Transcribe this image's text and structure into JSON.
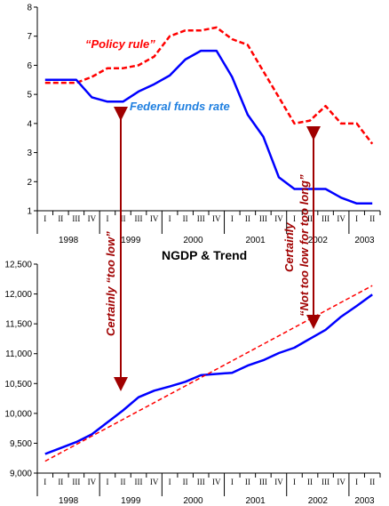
{
  "colors": {
    "policy": "#ff0000",
    "fedfunds": "#0000ff",
    "annotation": "#a00000",
    "series_label_blue": "#2080e0",
    "axis": "#000000"
  },
  "chart_data": [
    {
      "type": "line",
      "title": "",
      "ylim": [
        1,
        8
      ],
      "yticks": [
        "1",
        "2",
        "3",
        "4",
        "5",
        "6",
        "7",
        "8"
      ],
      "quarter_labels": [
        "I",
        "II",
        "III",
        "IV",
        "I",
        "II",
        "III",
        "IV",
        "I",
        "II",
        "III",
        "IV",
        "I",
        "II",
        "III",
        "IV",
        "I",
        "II",
        "III",
        "IV",
        "I",
        "II"
      ],
      "years": [
        "1998",
        "1999",
        "2000",
        "2001",
        "2002",
        "2003"
      ],
      "series": [
        {
          "name": "“Policy rule”",
          "style": "dashed",
          "values": [
            5.4,
            5.4,
            5.4,
            5.6,
            5.9,
            5.9,
            6.0,
            6.3,
            7.0,
            7.2,
            7.2,
            7.3,
            6.9,
            6.7,
            5.8,
            4.9,
            4.0,
            4.1,
            4.6,
            4.0,
            4.0,
            3.3
          ]
        },
        {
          "name": "Federal funds rate",
          "style": "solid",
          "values": [
            5.5,
            5.5,
            5.5,
            4.9,
            4.75,
            4.75,
            5.1,
            5.35,
            5.65,
            6.2,
            6.5,
            6.5,
            5.6,
            4.3,
            3.55,
            2.15,
            1.75,
            1.75,
            1.75,
            1.45,
            1.25,
            1.25
          ]
        }
      ],
      "annotations": {
        "left_arrow_text": "Certainly “too low”",
        "right_arrow_text_line1": "Certainly",
        "right_arrow_text_line2": "“Not too low for too long”"
      }
    },
    {
      "type": "line",
      "title": "NGDP & Trend",
      "ylim": [
        9000,
        12500
      ],
      "yticks": [
        "9,000",
        "9,500",
        "10,000",
        "10,500",
        "11,000",
        "11,500",
        "12,000",
        "12,500"
      ],
      "quarter_labels": [
        "I",
        "II",
        "III",
        "IV",
        "I",
        "II",
        "III",
        "IV",
        "I",
        "II",
        "III",
        "IV",
        "I",
        "II",
        "III",
        "IV",
        "I",
        "II",
        "III",
        "IV",
        "I",
        "II"
      ],
      "years": [
        "1998",
        "1999",
        "2000",
        "2001",
        "2002",
        "2003"
      ],
      "series": [
        {
          "style": "solid",
          "values": [
            9320,
            9420,
            9520,
            9650,
            9850,
            10050,
            10270,
            10380,
            10450,
            10530,
            10640,
            10660,
            10680,
            10800,
            10890,
            11010,
            11100,
            11250,
            11400,
            11620,
            11800,
            11990
          ]
        },
        {
          "style": "dashed",
          "values": [
            9200,
            9340,
            9480,
            9620,
            9760,
            9900,
            10040,
            10180,
            10320,
            10460,
            10600,
            10740,
            10880,
            11020,
            11160,
            11300,
            11440,
            11580,
            11720,
            11860,
            12000,
            12140
          ]
        }
      ]
    }
  ]
}
